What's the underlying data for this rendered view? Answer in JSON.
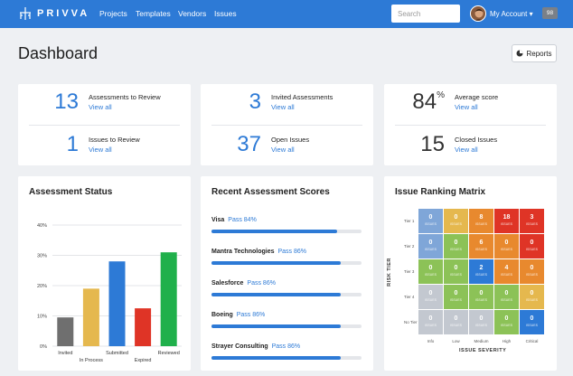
{
  "nav": {
    "brand": "PRIVVA",
    "links": [
      "Projects",
      "Templates",
      "Vendors",
      "Issues"
    ],
    "search_placeholder": "Search",
    "account_label": "My Account ▾",
    "badge": "98"
  },
  "page": {
    "title": "Dashboard",
    "reports_label": "Reports"
  },
  "stats": [
    {
      "value": "13",
      "label": "Assessments to Review",
      "link": "View all"
    },
    {
      "value": "1",
      "label": "Issues to Review",
      "link": "View all"
    },
    {
      "value": "3",
      "label": "Invited Assessments",
      "link": "View all"
    },
    {
      "value": "37",
      "label": "Open Issues",
      "link": "View all"
    },
    {
      "value": "84",
      "suffix": "%",
      "label": "Average score",
      "link": "View all"
    },
    {
      "value": "15",
      "label": "Closed Issues",
      "link": "View all"
    }
  ],
  "status": {
    "title": "Assessment Status"
  },
  "chart_data": {
    "type": "bar",
    "title": "Assessment Status",
    "categories": [
      "Invited",
      "In Process",
      "Submitted",
      "Expired",
      "Reviewed"
    ],
    "values": [
      9.5,
      19,
      28,
      12.5,
      31
    ],
    "colors": [
      "#6f6f6f",
      "#e5b84e",
      "#2d7ad6",
      "#df3426",
      "#20b04b"
    ],
    "ylim": [
      0,
      40
    ],
    "yticks": [
      "0%",
      "10%",
      "20%",
      "30%",
      "40%"
    ],
    "ylabel": "",
    "xlabel": "",
    "grid": true
  },
  "scores": {
    "title": "Recent Assessment Scores",
    "items": [
      {
        "name": "Visa",
        "pass": "Pass 84%",
        "percent": 84
      },
      {
        "name": "Mantra Technologies",
        "pass": "Pass 86%",
        "percent": 86
      },
      {
        "name": "Salesforce",
        "pass": "Pass 86%",
        "percent": 86
      },
      {
        "name": "Boeing",
        "pass": "Pass 86%",
        "percent": 86
      },
      {
        "name": "Strayer Consulting",
        "pass": "Pass 86%",
        "percent": 86
      }
    ]
  },
  "matrix": {
    "title": "Issue Ranking Matrix",
    "y_axis": "RISK TIER",
    "x_axis": "ISSUE SEVERITY",
    "tiers": [
      "Tier 1",
      "Tier 2",
      "Tier 3",
      "Tier 4",
      "No Tier"
    ],
    "severities": [
      "Info",
      "Low",
      "Medium",
      "High",
      "Critical"
    ],
    "cell_label": "ISSUES",
    "cells": [
      [
        {
          "v": "0",
          "c": "#7fa6d8"
        },
        {
          "v": "0",
          "c": "#e5b84e"
        },
        {
          "v": "8",
          "c": "#e8892e"
        },
        {
          "v": "18",
          "c": "#df3426"
        },
        {
          "v": "3",
          "c": "#df3426"
        }
      ],
      [
        {
          "v": "0",
          "c": "#7fa6d8"
        },
        {
          "v": "0",
          "c": "#8cc257"
        },
        {
          "v": "6",
          "c": "#e8892e"
        },
        {
          "v": "0",
          "c": "#e8892e"
        },
        {
          "v": "0",
          "c": "#df3426"
        }
      ],
      [
        {
          "v": "0",
          "c": "#8cc257"
        },
        {
          "v": "0",
          "c": "#8cc257"
        },
        {
          "v": "2",
          "c": "#2d7ad6"
        },
        {
          "v": "4",
          "c": "#e8892e"
        },
        {
          "v": "0",
          "c": "#e8892e"
        }
      ],
      [
        {
          "v": "0",
          "c": "#c3c8d0"
        },
        {
          "v": "0",
          "c": "#8cc257"
        },
        {
          "v": "0",
          "c": "#8cc257"
        },
        {
          "v": "0",
          "c": "#8cc257"
        },
        {
          "v": "0",
          "c": "#e5b84e"
        }
      ],
      [
        {
          "v": "0",
          "c": "#c3c8d0"
        },
        {
          "v": "0",
          "c": "#c3c8d0"
        },
        {
          "v": "0",
          "c": "#c3c8d0"
        },
        {
          "v": "0",
          "c": "#8cc257"
        },
        {
          "v": "0",
          "c": "#2d7ad6"
        }
      ]
    ]
  }
}
